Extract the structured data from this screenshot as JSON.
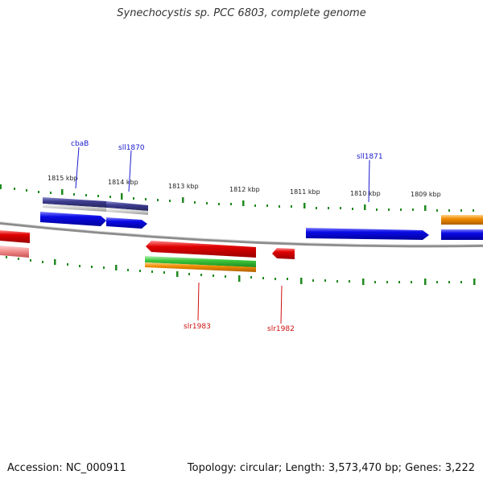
{
  "title": "Synechocystis sp. PCC 6803, complete genome",
  "footer": {
    "accession": "Accession: NC_000911",
    "topology": "Topology: circular; Length: 3,573,470 bp; Genes: 3,222"
  },
  "colors": {
    "backbone": "#8c8c8c",
    "ticks": "#1f8a1f",
    "forward_label": "#1a1ad0",
    "reverse_label": "#d01010",
    "blue": "#0a0ae6",
    "dark_blue": "#3d3d8f",
    "red": "#e00000",
    "orange": "#f08c00",
    "green": "#3cc83c"
  },
  "scale": {
    "unit": "kbp",
    "major_labels": [
      "1815 kbp",
      "1814 kbp",
      "1813 kbp",
      "1812 kbp",
      "1811 kbp",
      "1810 kbp",
      "1809 kbp"
    ]
  },
  "genes": {
    "forward": [
      "cbaB",
      "sll1870",
      "sll1871"
    ],
    "reverse": [
      "slr1983",
      "slr1982"
    ]
  }
}
